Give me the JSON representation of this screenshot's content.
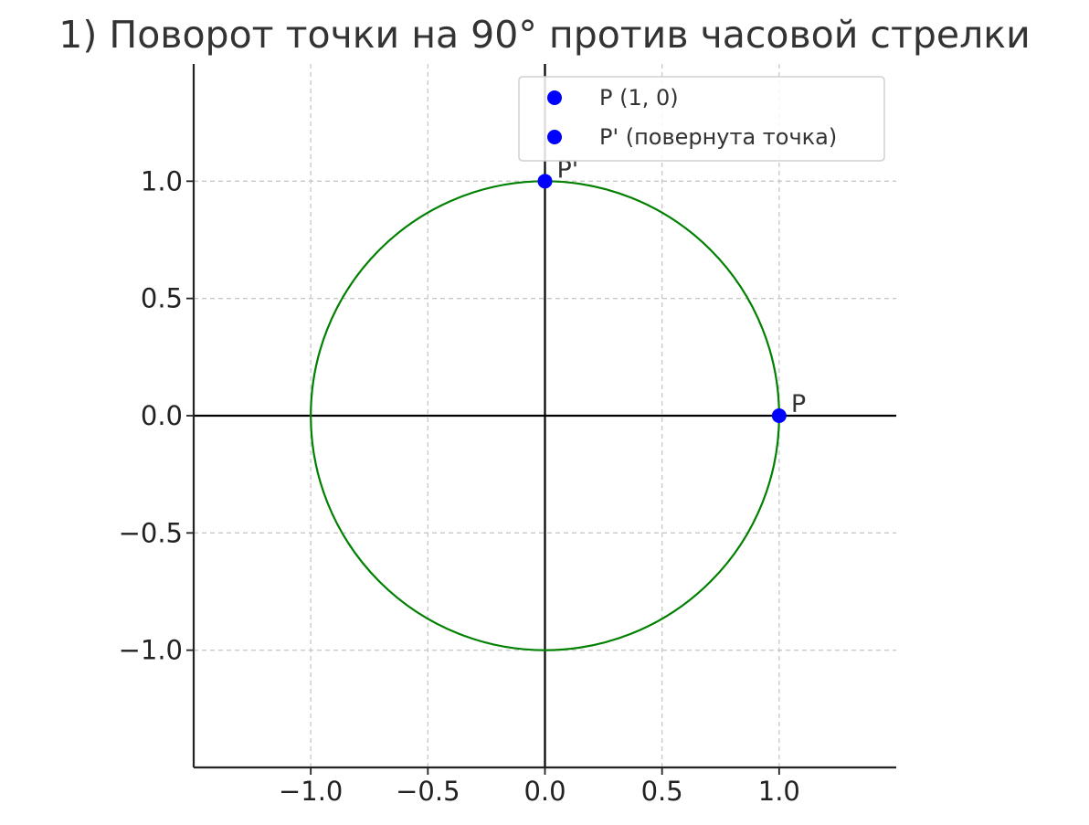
{
  "chart_data": {
    "type": "scatter",
    "title": "1) Поворот точки на 90° против часовой стрелки",
    "xlabel": "",
    "ylabel": "",
    "xlim": [
      -1.5,
      1.5
    ],
    "ylim": [
      -1.5,
      1.5
    ],
    "grid": true,
    "grid_style": "dashed",
    "legend_position": "top-right",
    "x_ticks": [
      -1.0,
      -0.5,
      0.0,
      0.5,
      1.0
    ],
    "y_ticks": [
      -1.0,
      -0.5,
      0.0,
      0.5,
      1.0
    ],
    "x_tick_labels": [
      "−1.0",
      "−0.5",
      "0.0",
      "0.5",
      "1.0"
    ],
    "y_tick_labels": [
      "−1.0",
      "−0.5",
      "0.0",
      "0.5",
      "1.0"
    ],
    "circle": {
      "center": [
        0,
        0
      ],
      "radius": 1,
      "color": "#008000"
    },
    "axes_lines": {
      "x": 0,
      "y": 0,
      "color": "#000000"
    },
    "series": [
      {
        "name": "P (1, 0)",
        "label": "P",
        "x": [
          1
        ],
        "y": [
          0
        ],
        "color": "#0000ff"
      },
      {
        "name": "P' (повернута точка)",
        "label": "P'",
        "x": [
          0
        ],
        "y": [
          1
        ],
        "color": "#0000ff"
      }
    ]
  }
}
